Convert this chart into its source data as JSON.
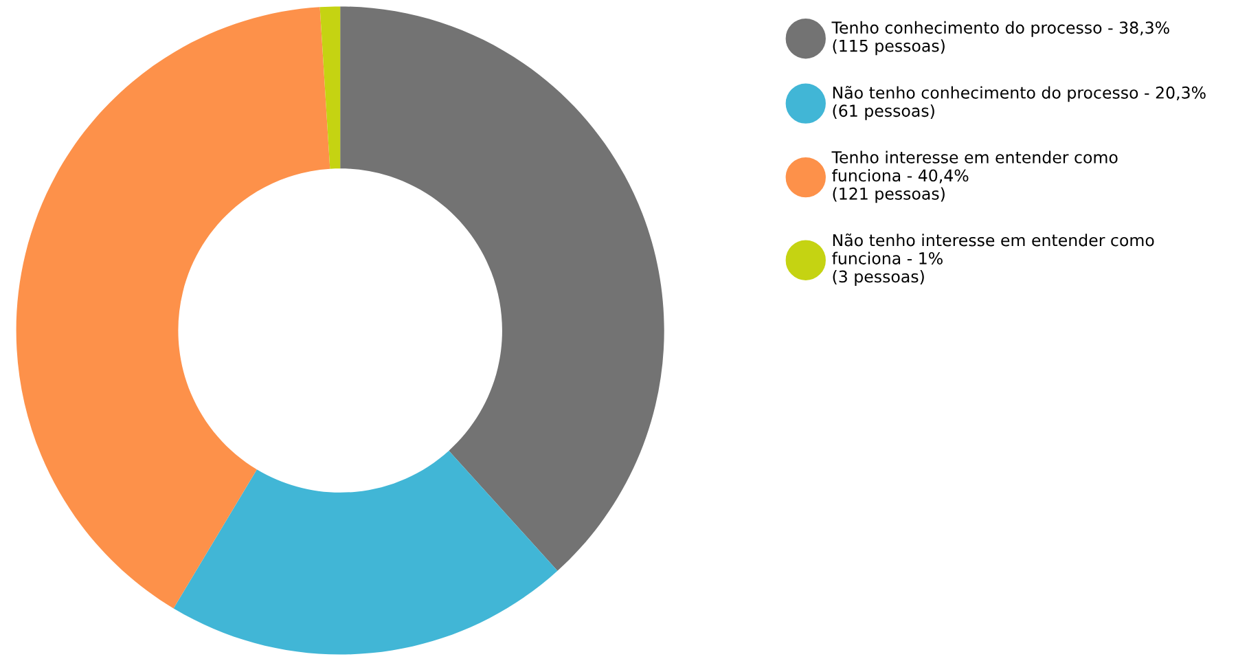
{
  "chart_data": {
    "type": "donut",
    "categories": [
      "Tenho conhecimento do processo - 38,3%\n(115 pessoas)",
      "Não tenho conhecimento do processo - 20,3%\n(61 pessoas)",
      "Tenho interesse em entender como\nfunciona - 40,4%\n(121 pessoas)",
      "Não tenho interesse em entender como\nfunciona - 1%\n(3 pessoas)"
    ],
    "values": [
      38.3,
      20.3,
      40.4,
      1
    ],
    "colors": [
      "#737373",
      "#41b6d6",
      "#fd914a",
      "#c5d312"
    ],
    "legend": "right"
  }
}
